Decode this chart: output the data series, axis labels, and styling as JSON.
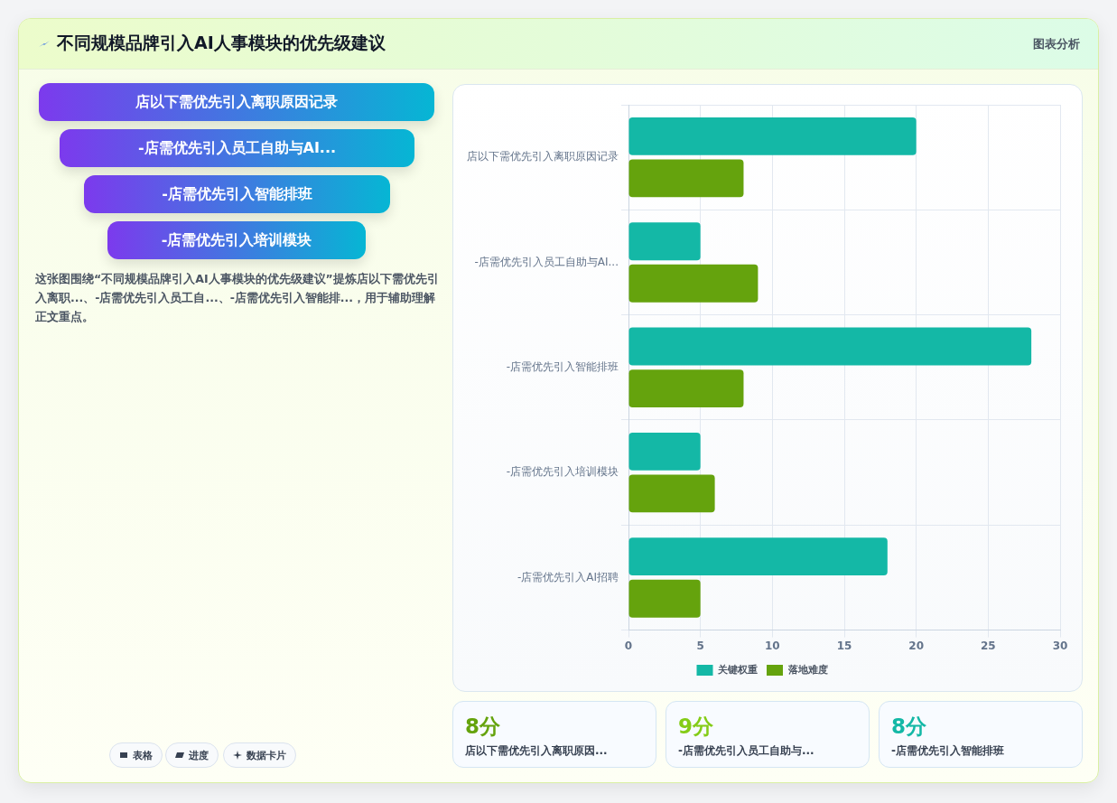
{
  "chart_data": [
    {
      "type": "other",
      "title": "不同规模品牌引入AI人事模块的优先级建议",
      "subtitle": "图表分析",
      "annotations": [
        "店以下需优先引入离职原因记录",
        "-店需优先引入员工自助与AI...",
        "-店需优先引入智能排班",
        "-店需优先引入培训模块",
        "这张图围绕“不同规模品牌引入AI人事模块的优先级建议”提炼店以下需优先引入离职...、-店需优先引入员工自...、-店需优先引入智能排...，用于辅助理解正文重点。",
        "表格",
        "进度",
        "数据卡片"
      ]
    },
    {
      "type": "bar",
      "orientation": "horizontal",
      "categories": [
        "店以下需优先引入离职原因记录",
        "-店需优先引入员工自助与AI...",
        "-店需优先引入智能排班",
        "-店需优先引入培训模块",
        "-店需优先引入AI招聘"
      ],
      "series": [
        {
          "name": "关键权重",
          "color": "#14b8a6",
          "values": [
            20,
            5,
            28,
            5,
            18
          ]
        },
        {
          "name": "落地难度",
          "color": "#65a30d",
          "values": [
            8,
            9,
            8,
            6,
            5
          ]
        }
      ],
      "xlim": [
        0,
        30
      ],
      "xticks": [
        0,
        5,
        10,
        15,
        20,
        25,
        30
      ],
      "grid": true,
      "legend": "bottom"
    },
    {
      "type": "other",
      "annotations": [
        "8分",
        "店以下需优先引入离职原因...",
        "9分",
        "-店需优先引入员工自助与...",
        "8分",
        "-店需优先引入智能排班"
      ]
    }
  ]
}
